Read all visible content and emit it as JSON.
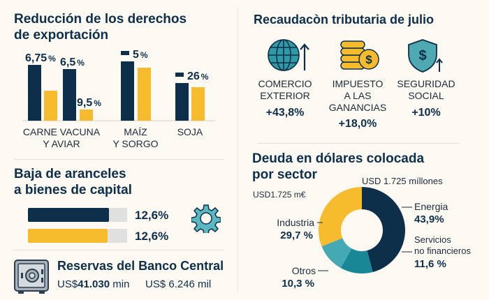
{
  "colors": {
    "navy": "#0e2f4a",
    "yellow": "#f7bb2e",
    "teal": "#1a8797",
    "teal_light": "#44a9b3",
    "background": "#fcf9f2",
    "track": "#e0e0e0"
  },
  "export_duties": {
    "title_line1": "Reducción de los derechos",
    "title_line2": "de exportación"
  },
  "chart_data": [
    {
      "type": "bar",
      "title": "Reducción de los derechos de exportación",
      "categories": [
        "CARNE VACUNA Y AVIAR",
        "MAÍZ Y SORGO",
        "SOJA"
      ],
      "category_lines": [
        [
          "CARNE VACUNA",
          "Y AVIAR"
        ],
        [
          "MAÍZ",
          "Y SORGO"
        ],
        [
          "SOJA"
        ]
      ],
      "bars": [
        {
          "group": "CARNE VACUNA Y AVIAR",
          "color": "navy",
          "relative_height": 80,
          "label": "6,75",
          "unit": "%"
        },
        {
          "group": "CARNE VACUNA Y AVIAR",
          "color": "yellow",
          "relative_height": 43,
          "label": "",
          "unit": ""
        },
        {
          "group": "CARNE VACUNA Y AVIAR",
          "color": "navy",
          "relative_height": 74,
          "label": "6,5",
          "unit": "%"
        },
        {
          "group": "CARNE VACUNA Y AVIAR",
          "color": "yellow",
          "relative_height": 16,
          "label": "9,5",
          "unit": "%"
        },
        {
          "group": "MAÍZ Y SORGO",
          "color": "navy",
          "relative_height": 85,
          "label": "5",
          "unit": "%"
        },
        {
          "group": "MAÍZ Y SORGO",
          "color": "yellow",
          "relative_height": 76,
          "label": "",
          "unit": ""
        },
        {
          "group": "SOJA",
          "color": "navy",
          "relative_height": 54,
          "label": "26",
          "unit": "%"
        },
        {
          "group": "SOJA",
          "color": "yellow",
          "relative_height": 48,
          "label": "",
          "unit": ""
        }
      ],
      "grid": false
    },
    {
      "type": "pie",
      "title": "Deuda en dólares colocada por sector",
      "total_label": "USD 1.725 míllones",
      "subtitle": "USD1.725 m€",
      "slices": [
        {
          "name": "Energia",
          "value": 43.9,
          "label": "43,9%",
          "color": "#0e2f4a"
        },
        {
          "name_lines": [
            "Servicios",
            "no financieros"
          ],
          "name": "Servicios no financieros",
          "value": 11.6,
          "label": "11,6 %",
          "color": "#1a8797"
        },
        {
          "name": "Otros",
          "value": 10.3,
          "label": "10,3 %",
          "color": "#44a9b3"
        },
        {
          "name": "Industria",
          "value": 29.7,
          "label": "29,7 %",
          "color": "#f7bb2e"
        }
      ]
    }
  ],
  "tariffs": {
    "title_line1": "Baja de aranceles",
    "title_line2": "a bienes de capital",
    "bars": [
      {
        "fraction": 0.82,
        "label": "12,6%",
        "color": "navy"
      },
      {
        "fraction": 0.8,
        "label": "12,6%",
        "color": "yellow"
      }
    ],
    "icon": "gear-icon"
  },
  "reserves": {
    "title": "Reservas del Banco Central",
    "value1_prefix": "US$",
    "value1": "41.030",
    "value1_suffix": "min",
    "value2": "US$ 6.246 mil",
    "icon": "safe-icon"
  },
  "tax": {
    "title": "Recaudacòn tributaria de julio",
    "items": [
      {
        "icon": "globe-arrow-up-icon",
        "line1": "COMERCIO",
        "line2": "EXTERIOR",
        "line3": "",
        "value": "+43,8%"
      },
      {
        "icon": "coins-dollar-icon",
        "line1": "IMPUESTO",
        "line2": "A LAS",
        "line3": "GANANCIAS",
        "value": "+18,0%"
      },
      {
        "icon": "shield-dollar-icon",
        "line1": "SEGURIDAD",
        "line2": "SOCIAL",
        "line3": "",
        "value": "+10%"
      }
    ]
  },
  "debt": {
    "title_line1": "Deuda en dólares colocada",
    "title_line2": "por sector"
  }
}
